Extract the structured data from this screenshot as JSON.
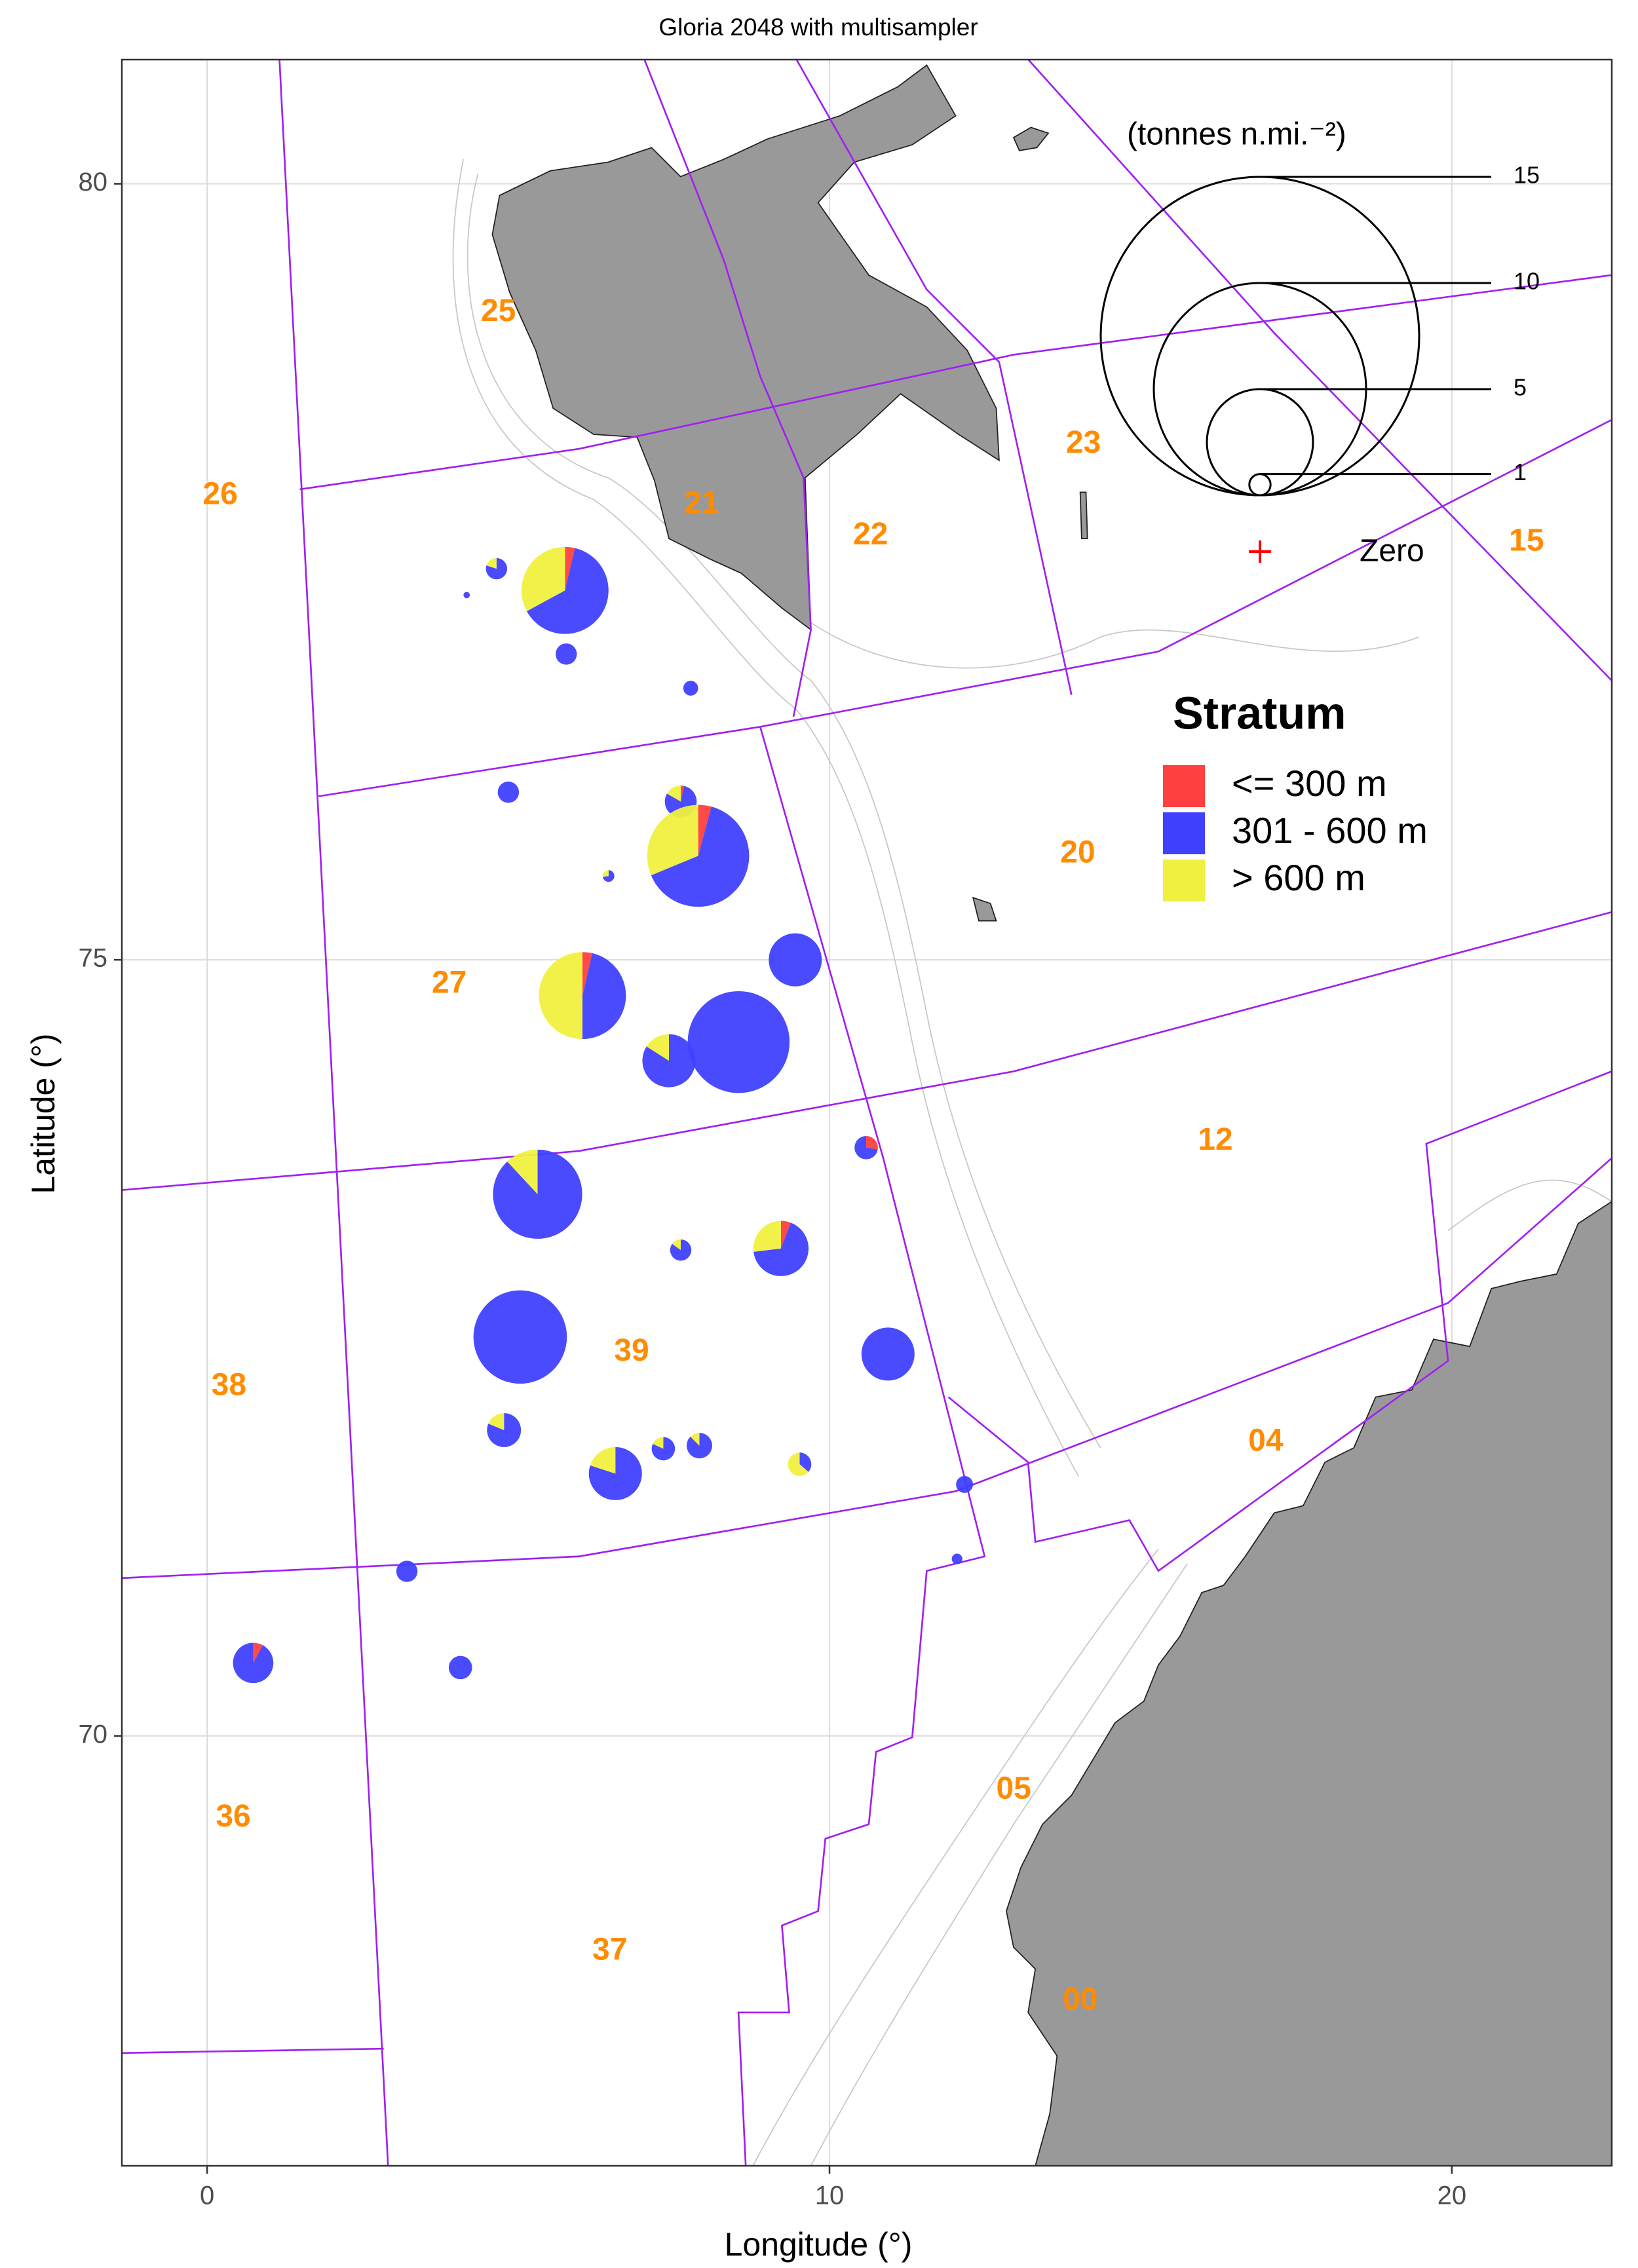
{
  "chart_data": {
    "type": "pie-map",
    "title": "Gloria 2048 with multisampler",
    "x_label": "Longitude (°)",
    "y_label": "Latitude (°)",
    "xlim": [
      -1.37,
      22.57
    ],
    "ylim": [
      67.23,
      80.8
    ],
    "xticks": [
      0,
      10,
      20
    ],
    "yticks": [
      70,
      75,
      80
    ],
    "grid": true,
    "lon": [
      4.65,
      4.17,
      5.75,
      5.77,
      7.77,
      4.84,
      7.61,
      7.89,
      6.45,
      9.45,
      6.03,
      8.54,
      7.42,
      10.59,
      5.31,
      7.61,
      9.22,
      5.03,
      10.94,
      4.77,
      6.56,
      7.33,
      7.91,
      9.52,
      12.17,
      12.05,
      3.21,
      0.74,
      4.07
    ],
    "lat": [
      77.52,
      77.35,
      77.38,
      76.97,
      76.75,
      76.08,
      76.02,
      75.67,
      75.54,
      75.0,
      74.77,
      74.47,
      74.35,
      73.79,
      73.49,
      73.13,
      73.14,
      72.57,
      72.46,
      71.97,
      71.69,
      71.85,
      71.87,
      71.75,
      71.62,
      71.14,
      71.06,
      70.47,
      70.44
    ],
    "series": [
      {
        "name": "<= 300 m",
        "color": "#ff4040",
        "values": [
          0,
          0,
          0.15,
          0,
          0,
          0,
          0.05,
          0.2,
          0,
          0,
          0.15,
          0,
          0,
          0.3,
          0,
          0,
          0.15,
          0,
          0,
          0,
          0,
          0,
          0,
          0,
          0,
          0,
          0,
          0.15,
          0
        ]
      },
      {
        "name": "301 - 600 m",
        "color": "#4040ff",
        "values": [
          0.8,
          0.3,
          2.6,
          1.0,
          0.7,
          1.0,
          1.2,
          3.1,
          0.4,
          2.5,
          1.9,
          4.8,
          2.1,
          0.8,
          3.7,
          0.85,
          1.75,
          4.4,
          2.5,
          1.3,
          2.0,
          0.9,
          1.05,
          0.4,
          0.8,
          0.5,
          1.0,
          1.75,
          1.1
        ]
      },
      {
        "name": "> 600 m",
        "color": "#f0f040",
        "values": [
          0.2,
          0,
          1.35,
          0,
          0,
          0,
          0.25,
          1.5,
          0.15,
          0,
          2.05,
          0,
          0.4,
          0,
          0.5,
          0.15,
          0.7,
          0,
          0,
          0.3,
          0.5,
          0.2,
          0.15,
          0.7,
          0,
          0,
          0,
          0,
          0
        ]
      }
    ],
    "legend_title": "Stratum",
    "size_legend": {
      "title": "(tonnes n.mi.⁻²)",
      "values": [
        15,
        10,
        5,
        1
      ],
      "zero_label": "Zero"
    },
    "regions": [
      {
        "label": "25",
        "lon": 4.68,
        "lat": 79.17
      },
      {
        "label": "26",
        "lon": 0.21,
        "lat": 77.99
      },
      {
        "label": "21",
        "lon": 7.94,
        "lat": 77.93
      },
      {
        "label": "22",
        "lon": 10.66,
        "lat": 77.73
      },
      {
        "label": "23",
        "lon": 14.08,
        "lat": 78.32
      },
      {
        "label": "15",
        "lon": 21.2,
        "lat": 77.69
      },
      {
        "label": "20",
        "lon": 13.99,
        "lat": 75.68
      },
      {
        "label": "27",
        "lon": 3.89,
        "lat": 74.84
      },
      {
        "label": "12",
        "lon": 16.2,
        "lat": 73.83
      },
      {
        "label": "39",
        "lon": 6.82,
        "lat": 72.47
      },
      {
        "label": "38",
        "lon": 0.35,
        "lat": 72.25
      },
      {
        "label": "04",
        "lon": 17.01,
        "lat": 71.89
      },
      {
        "label": "05",
        "lon": 12.96,
        "lat": 69.65
      },
      {
        "label": "36",
        "lon": 0.42,
        "lat": 69.47
      },
      {
        "label": "37",
        "lon": 6.47,
        "lat": 68.61
      },
      {
        "label": "00",
        "lon": 14.03,
        "lat": 68.29
      }
    ]
  }
}
